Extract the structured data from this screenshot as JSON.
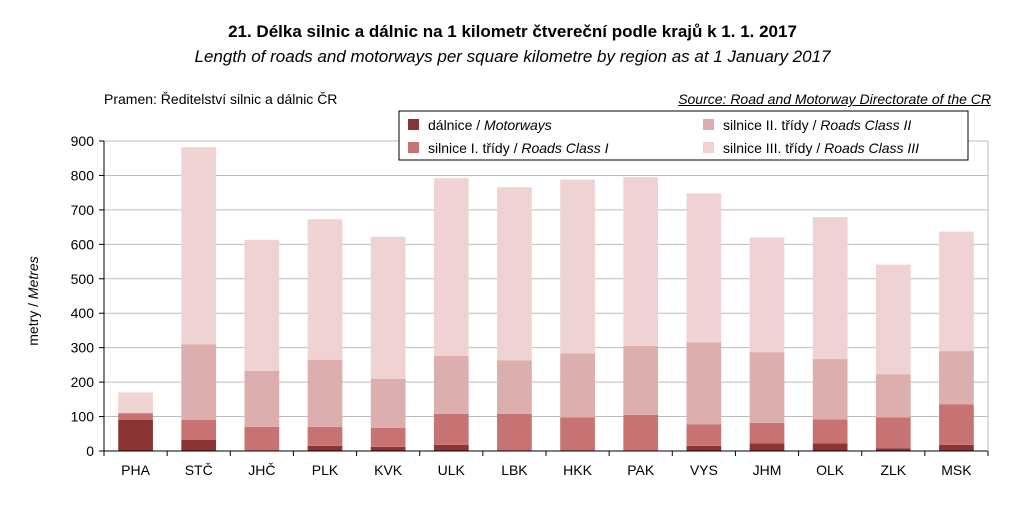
{
  "header": {
    "title": "21. Délka silnic a dálnic na 1 kilometr čtvereční podle krajů k 1. 1. 2017",
    "subtitle": "Length of roads and motorways per square kilometre by region as at 1 January 2017",
    "source_cz": "Pramen: Ředitelství  silnic a dálnic ČR",
    "source_en": "Source: Road and Motorway Directorate of the CR"
  },
  "chart_data": {
    "type": "bar",
    "stacked": true,
    "categories": [
      "PHA",
      "STČ",
      "JHČ",
      "PLK",
      "KVK",
      "ULK",
      "LBK",
      "HKK",
      "PAK",
      "VYS",
      "JHM",
      "OLK",
      "ZLK",
      "MSK"
    ],
    "ylabel_cz": "metry",
    "ylabel_en": "Metres",
    "ylim": [
      0,
      900
    ],
    "yticks": [
      0,
      100,
      200,
      300,
      400,
      500,
      600,
      700,
      800,
      900
    ],
    "grid": true,
    "legend_position": "top-right",
    "series": [
      {
        "name_cz": "dálnice",
        "name_en": "Motorways",
        "color": "#8b3436",
        "values": [
          90,
          32,
          0,
          15,
          12,
          18,
          0,
          0,
          0,
          15,
          22,
          22,
          8,
          18
        ]
      },
      {
        "name_cz": "silnice I. třídy",
        "name_en": "Roads Class I",
        "color": "#c87373",
        "values": [
          20,
          58,
          70,
          55,
          55,
          90,
          108,
          98,
          105,
          62,
          60,
          70,
          90,
          117
        ]
      },
      {
        "name_cz": "silnice II. třídy",
        "name_en": "Roads Class II",
        "color": "#ddaeae",
        "values": [
          0,
          220,
          163,
          195,
          143,
          168,
          155,
          185,
          200,
          238,
          205,
          175,
          125,
          155
        ]
      },
      {
        "name_cz": "silnice III. třídy",
        "name_en": "Roads Class III",
        "color": "#efd3d3",
        "values": [
          60,
          572,
          380,
          408,
          412,
          516,
          503,
          505,
          490,
          433,
          333,
          412,
          318,
          347
        ]
      }
    ]
  }
}
